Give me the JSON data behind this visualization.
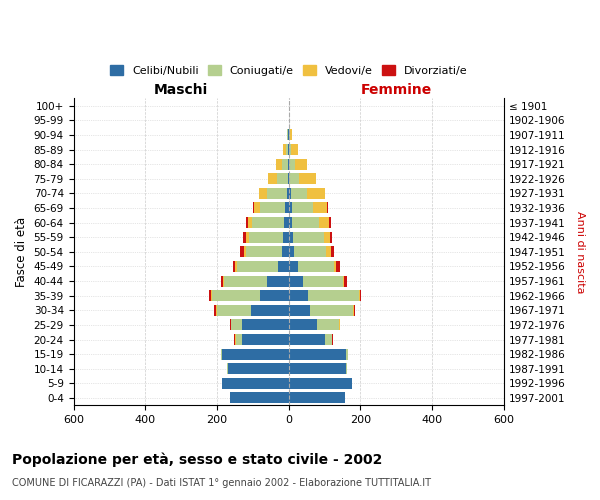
{
  "age_groups": [
    "100+",
    "95-99",
    "90-94",
    "85-89",
    "80-84",
    "75-79",
    "70-74",
    "65-69",
    "60-64",
    "55-59",
    "50-54",
    "45-49",
    "40-44",
    "35-39",
    "30-34",
    "25-29",
    "20-24",
    "15-19",
    "10-14",
    "5-9",
    "0-4"
  ],
  "birth_years": [
    "≤ 1901",
    "1902-1906",
    "1907-1911",
    "1912-1916",
    "1917-1921",
    "1922-1926",
    "1927-1931",
    "1932-1936",
    "1937-1941",
    "1942-1946",
    "1947-1951",
    "1952-1956",
    "1957-1961",
    "1962-1966",
    "1967-1971",
    "1972-1976",
    "1977-1981",
    "1982-1986",
    "1987-1991",
    "1992-1996",
    "1997-2001"
  ],
  "male": {
    "celibi": [
      0,
      0,
      2,
      3,
      2,
      2,
      5,
      10,
      12,
      15,
      20,
      30,
      60,
      80,
      105,
      130,
      130,
      185,
      170,
      185,
      165
    ],
    "coniugati": [
      0,
      0,
      2,
      5,
      18,
      30,
      55,
      70,
      90,
      95,
      100,
      115,
      120,
      135,
      95,
      30,
      18,
      5,
      2,
      0,
      0
    ],
    "vedovi": [
      0,
      0,
      1,
      8,
      15,
      25,
      22,
      18,
      12,
      10,
      5,
      5,
      3,
      2,
      2,
      2,
      2,
      0,
      0,
      0,
      0
    ],
    "divorziati": [
      0,
      0,
      0,
      0,
      0,
      2,
      2,
      3,
      5,
      8,
      10,
      5,
      5,
      5,
      5,
      2,
      2,
      0,
      0,
      0,
      0
    ]
  },
  "female": {
    "nubili": [
      0,
      0,
      1,
      2,
      2,
      2,
      5,
      8,
      10,
      12,
      15,
      25,
      40,
      55,
      60,
      80,
      100,
      160,
      160,
      175,
      158
    ],
    "coniugate": [
      0,
      0,
      2,
      5,
      15,
      28,
      45,
      60,
      75,
      85,
      90,
      100,
      110,
      140,
      120,
      60,
      20,
      5,
      2,
      0,
      0
    ],
    "vedove": [
      0,
      1,
      5,
      20,
      35,
      45,
      50,
      40,
      28,
      18,
      12,
      8,
      5,
      3,
      3,
      2,
      2,
      0,
      0,
      0,
      0
    ],
    "divorziate": [
      0,
      0,
      0,
      0,
      0,
      2,
      2,
      2,
      5,
      5,
      8,
      10,
      8,
      3,
      3,
      2,
      1,
      0,
      0,
      0,
      0
    ]
  },
  "colors": {
    "celibi": "#2e6da4",
    "coniugati": "#b5cf8f",
    "vedovi": "#f0c040",
    "divorziati": "#cc1111"
  },
  "title": "Popolazione per età, sesso e stato civile - 2002",
  "subtitle": "COMUNE DI FICARAZZI (PA) - Dati ISTAT 1° gennaio 2002 - Elaborazione TUTTITALIA.IT",
  "xlabel_left": "Maschi",
  "xlabel_right": "Femmine",
  "ylabel_left": "Fasce di età",
  "ylabel_right": "Anni di nascita",
  "xlim": 600,
  "legend_labels": [
    "Celibi/Nubili",
    "Coniugati/e",
    "Vedovi/e",
    "Divorziati/e"
  ],
  "background_color": "#ffffff",
  "grid_color": "#cccccc"
}
